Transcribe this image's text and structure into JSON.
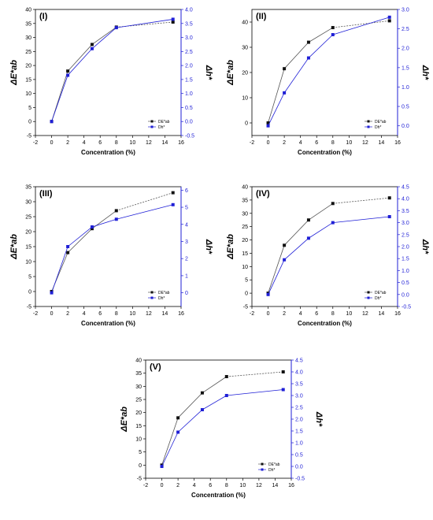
{
  "colors": {
    "series1": "#111111",
    "series2": "#1f1fd6",
    "rightAxis": "#1f1fd6"
  },
  "chart_data": [
    {
      "panel_label": "(I)",
      "type": "line",
      "x": [
        0,
        2,
        5,
        8,
        15
      ],
      "series": [
        {
          "name": "DE*ab",
          "axis": "left",
          "values": [
            0,
            18,
            27.5,
            33.7,
            35.5
          ]
        },
        {
          "name": "Dh*",
          "axis": "right",
          "values": [
            0,
            1.65,
            2.6,
            3.35,
            3.65
          ]
        }
      ],
      "xlabel": "Concentration (%)",
      "ylabel": "ΔE*ab",
      "ylabel_right": "Δh*",
      "xlim": [
        -2,
        16
      ],
      "xticks": [
        "-2",
        "0",
        "2",
        "4",
        "6",
        "8",
        "10",
        "12",
        "14",
        "16"
      ],
      "ylim": [
        -5,
        40
      ],
      "yticks": [
        "-5",
        "0",
        "5",
        "10",
        "15",
        "20",
        "25",
        "30",
        "35",
        "40"
      ],
      "ylim_right": [
        -0.5,
        4.0
      ],
      "yticks_right": [
        "-0.5",
        "0.0",
        "0.5",
        "1.0",
        "1.5",
        "2.0",
        "2.5",
        "3.0",
        "3.5",
        "4.0"
      ],
      "legend_position": "bottom-right"
    },
    {
      "panel_label": "(II)",
      "type": "line",
      "x": [
        0,
        2,
        5,
        8,
        15
      ],
      "series": [
        {
          "name": "DE*ab",
          "axis": "left",
          "values": [
            0,
            21.5,
            32,
            37.8,
            40.5
          ]
        },
        {
          "name": "Dh*",
          "axis": "right",
          "values": [
            0,
            0.85,
            1.75,
            2.35,
            2.8
          ]
        }
      ],
      "xlabel": "Concentration (%)",
      "ylabel": "ΔE*ab",
      "ylabel_right": "Δh*",
      "xlim": [
        -2,
        16
      ],
      "xticks": [
        "-2",
        "0",
        "2",
        "4",
        "6",
        "8",
        "10",
        "12",
        "14",
        "16"
      ],
      "ylim": [
        -5,
        45
      ],
      "yticks": [
        "0",
        "10",
        "20",
        "30",
        "40"
      ],
      "ylim_right": [
        -0.25,
        3.0
      ],
      "yticks_right": [
        "0.0",
        "0.5",
        "1.0",
        "1.5",
        "2.0",
        "2.5",
        "3.0"
      ],
      "legend_position": "bottom-right"
    },
    {
      "panel_label": "(III)",
      "type": "line",
      "x": [
        0,
        2,
        5,
        8,
        15
      ],
      "series": [
        {
          "name": "DE*ab",
          "axis": "left",
          "values": [
            0,
            13,
            21,
            27,
            33
          ]
        },
        {
          "name": "Dh*",
          "axis": "right",
          "values": [
            0,
            2.7,
            3.85,
            4.3,
            5.15
          ]
        }
      ],
      "xlabel": "Concentration (%)",
      "ylabel": "ΔE*ab",
      "ylabel_right": "Δh*",
      "xlim": [
        -2,
        16
      ],
      "xticks": [
        "-2",
        "0",
        "2",
        "4",
        "6",
        "8",
        "10",
        "12",
        "14",
        "16"
      ],
      "ylim": [
        -5,
        35
      ],
      "yticks": [
        "-5",
        "0",
        "5",
        "10",
        "15",
        "20",
        "25",
        "30",
        "35"
      ],
      "ylim_right": [
        -0.8,
        6.2
      ],
      "yticks_right": [
        "0",
        "1",
        "2",
        "3",
        "4",
        "5",
        "6"
      ],
      "legend_position": "bottom-right"
    },
    {
      "panel_label": "(IV)",
      "type": "line",
      "x": [
        0,
        2,
        5,
        8,
        15
      ],
      "series": [
        {
          "name": "DE*ab",
          "axis": "left",
          "values": [
            0,
            18,
            27.5,
            33.7,
            35.8
          ]
        },
        {
          "name": "Dh*",
          "axis": "right",
          "values": [
            0,
            1.45,
            2.35,
            3.0,
            3.25
          ]
        }
      ],
      "xlabel": "Concentration (%)",
      "ylabel": "ΔE*ab",
      "ylabel_right": "Δh*",
      "xlim": [
        -2,
        16
      ],
      "xticks": [
        "-2",
        "0",
        "2",
        "4",
        "6",
        "8",
        "10",
        "12",
        "14",
        "16"
      ],
      "ylim": [
        -5,
        40
      ],
      "yticks": [
        "-5",
        "0",
        "5",
        "10",
        "15",
        "20",
        "25",
        "30",
        "35",
        "40"
      ],
      "ylim_right": [
        -0.5,
        4.5
      ],
      "yticks_right": [
        "-0.5",
        "0.0",
        "0.5",
        "1.0",
        "1.5",
        "2.0",
        "2.5",
        "3.0",
        "3.5",
        "4.0",
        "4.5"
      ],
      "legend_position": "bottom-right"
    },
    {
      "panel_label": "(V)",
      "type": "line",
      "x": [
        0,
        2,
        5,
        8,
        15
      ],
      "series": [
        {
          "name": "DE*ab",
          "axis": "left",
          "values": [
            0,
            18,
            27.5,
            33.7,
            35.5
          ]
        },
        {
          "name": "Dh*",
          "axis": "right",
          "values": [
            0,
            1.45,
            2.4,
            3.0,
            3.25
          ]
        }
      ],
      "xlabel": "Concentration (%)",
      "ylabel": "ΔE*ab",
      "ylabel_right": "Δh*",
      "xlim": [
        -2,
        16
      ],
      "xticks": [
        "-2",
        "0",
        "2",
        "4",
        "6",
        "8",
        "10",
        "12",
        "14",
        "16"
      ],
      "ylim": [
        -5,
        40
      ],
      "yticks": [
        "-5",
        "0",
        "5",
        "10",
        "15",
        "20",
        "25",
        "30",
        "35",
        "40"
      ],
      "ylim_right": [
        -0.5,
        4.5
      ],
      "yticks_right": [
        "-0.5",
        "0.0",
        "0.5",
        "1.0",
        "1.5",
        "2.0",
        "2.5",
        "3.0",
        "3.5",
        "4.0",
        "4.5"
      ],
      "legend_position": "bottom-right"
    }
  ]
}
